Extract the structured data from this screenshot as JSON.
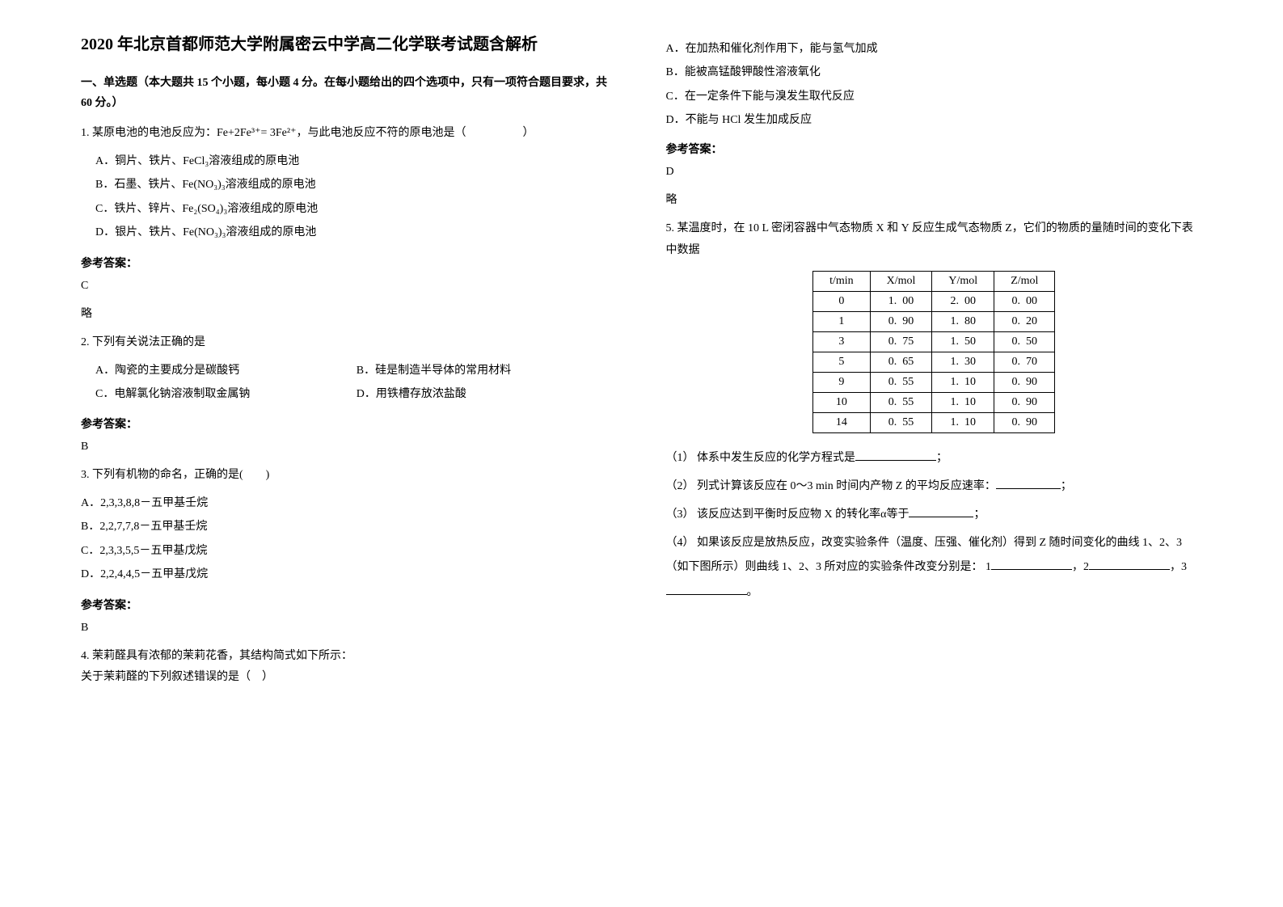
{
  "title": "2020 年北京首都师范大学附属密云中学高二化学联考试题含解析",
  "section1_header": "一、单选题（本大题共 15 个小题，每小题 4 分。在每小题给出的四个选项中，只有一项符合题目要求，共 60 分。）",
  "q1": {
    "text": "1. 某原电池的电池反应为：Fe+2Fe³⁺= 3Fe²⁺，与此电池反应不符的原电池是（　　　　　）",
    "optA": "A．铜片、铁片、FeCl₃溶液组成的原电池",
    "optB": "B．石墨、铁片、Fe(NO₃)₃溶液组成的原电池",
    "optC": "C．铁片、锌片、Fe₂(SO₄)₃溶液组成的原电池",
    "optD": "D．银片、铁片、Fe(NO₃)₃溶液组成的原电池",
    "answer_label": "参考答案：",
    "answer": "C",
    "note": "略"
  },
  "q2": {
    "text": "2. 下列有关说法正确的是",
    "optA": "A．陶瓷的主要成分是碳酸钙",
    "optB": "B．硅是制造半导体的常用材料",
    "optC": "C．电解氯化钠溶液制取金属钠",
    "optD": "D．用铁槽存放浓盐酸",
    "answer_label": "参考答案：",
    "answer": "B"
  },
  "q3": {
    "text": "3. 下列有机物的命名，正确的是(　　)",
    "optA": "A．2,3,3,8,8－五甲基壬烷",
    "optB": "B．2,2,7,7,8－五甲基壬烷",
    "optC": "C．2,3,3,5,5－五甲基戊烷",
    "optD": "D．2,2,4,4,5－五甲基戊烷",
    "answer_label": "参考答案：",
    "answer": "B"
  },
  "q4": {
    "text": "4. 茉莉醛具有浓郁的茉莉花香，其结构简式如下所示：",
    "text2": "关于茉莉醛的下列叙述错误的是（ ）",
    "optA": "A．在加热和催化剂作用下，能与氢气加成",
    "optB": "B．能被高锰酸钾酸性溶液氧化",
    "optC": "C．在一定条件下能与溴发生取代反应",
    "optD": "D．不能与 HCl 发生加成反应",
    "answer_label": "参考答案：",
    "answer": "D",
    "note": "略"
  },
  "q5": {
    "text": "5. 某温度时，在 10 L 密闭容器中气态物质 X 和 Y 反应生成气态物质 Z，它们的物质的量随时间的变化下表中数据",
    "table": {
      "headers": [
        "t/min",
        "X/mol",
        "Y/mol",
        "Z/mol"
      ],
      "rows": [
        [
          "0",
          "1. 00",
          "2. 00",
          "0. 00"
        ],
        [
          "1",
          "0. 90",
          "1. 80",
          "0. 20"
        ],
        [
          "3",
          "0. 75",
          "1. 50",
          "0. 50"
        ],
        [
          "5",
          "0. 65",
          "1. 30",
          "0. 70"
        ],
        [
          "9",
          "0. 55",
          "1. 10",
          "0. 90"
        ],
        [
          "10",
          "0. 55",
          "1. 10",
          "0. 90"
        ],
        [
          "14",
          "0. 55",
          "1. 10",
          "0. 90"
        ]
      ]
    },
    "sub1": "（1） 体系中发生反应的化学方程式是",
    "sub1_tail": "；",
    "sub2": "（2） 列式计算该反应在 0～3 min 时间内产物 Z 的平均反应速率：",
    "sub2_tail": "；",
    "sub3": "（3） 该反应达到平衡时反应物 X 的转化率α等于",
    "sub3_tail": "；",
    "sub4_a": "（4） 如果该反应是放热反应，改变实验条件（温度、压强、催化剂）得到 Z 随时间变化的曲线 1、2、3（如下图所示）则曲线 1、2、3 所对应的实验条件改变分别是：",
    "sub4_b": "1",
    "sub4_c": "，2",
    "sub4_d": "，3",
    "sub4_e": "。"
  }
}
